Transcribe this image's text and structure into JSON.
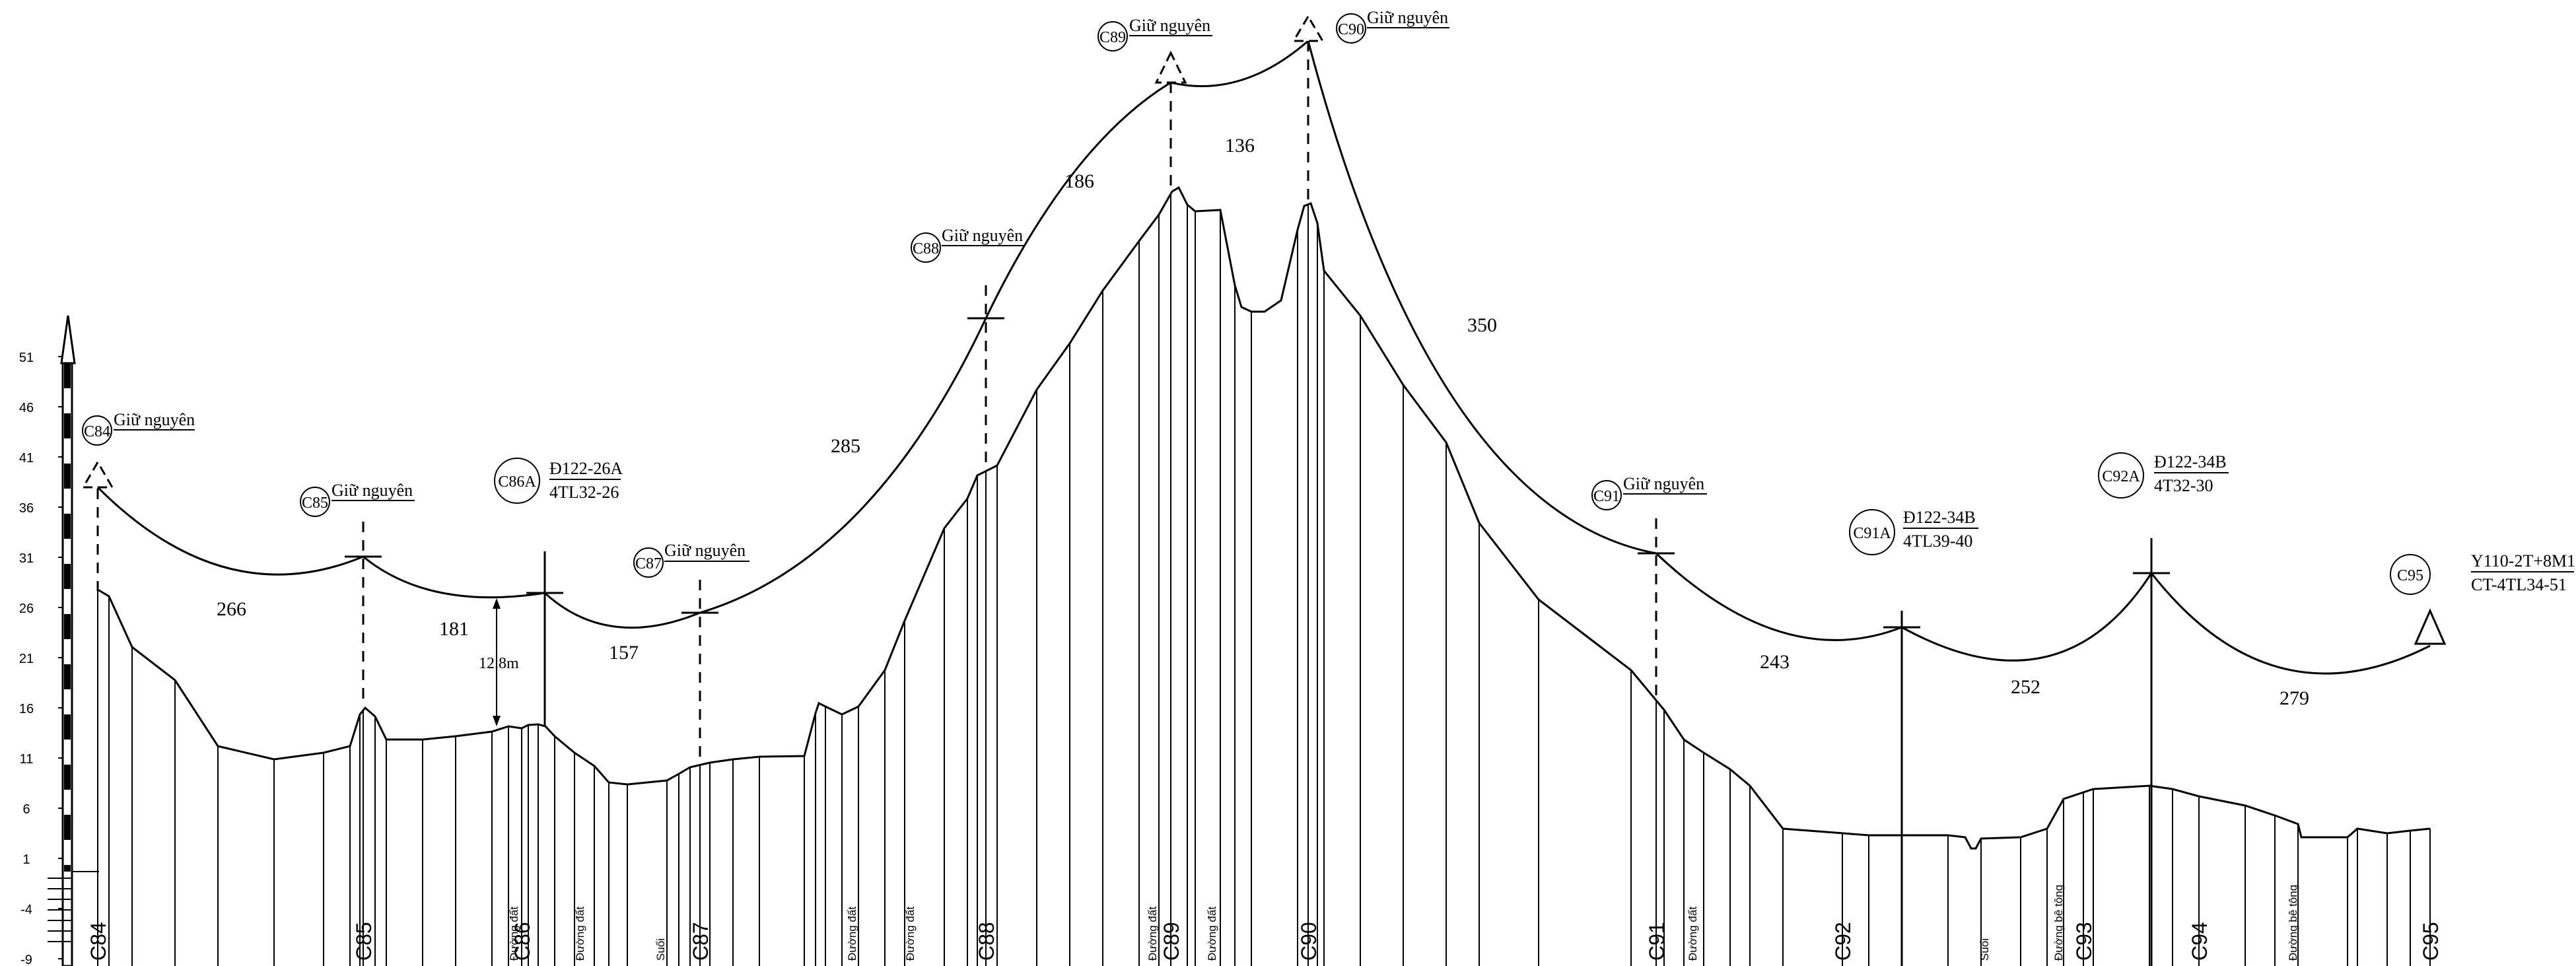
{
  "y_axis": {
    "ticks": [
      "51",
      "46",
      "41",
      "36",
      "31",
      "26",
      "21",
      "16",
      "11",
      "6",
      "1",
      "-4",
      "-9"
    ],
    "min": -9,
    "max": 51
  },
  "stations": [
    {
      "label": "C84",
      "x_value": 0
    },
    {
      "label": "C85",
      "x_value": 266
    },
    {
      "label": "C86",
      "x_value": 447
    },
    {
      "label": "C87",
      "x_value": 604
    },
    {
      "label": "C88",
      "x_value": 889
    },
    {
      "label": "C89",
      "x_value": 1075
    },
    {
      "label": "C90",
      "x_value": 1211
    },
    {
      "label": "C91",
      "x_value": 1561
    },
    {
      "label": "C92",
      "x_value": 1804
    },
    {
      "label": "C93",
      "x_value": 1925
    },
    {
      "label": "C94",
      "x_value": 2056
    },
    {
      "label": "C95",
      "x_value": 2335
    }
  ],
  "bottom_notes": [
    {
      "text": "Đường đất",
      "near": "C86",
      "offset": -12
    },
    {
      "text": "Đường đất",
      "near": "C86",
      "offset": 88
    },
    {
      "text": "Suối",
      "near": "C87",
      "offset": -60
    },
    {
      "text": "Đường đất",
      "near": "C87",
      "offset": 230
    },
    {
      "text": "Đường đất",
      "near": "C88",
      "offset": -115
    },
    {
      "text": "Đường đất",
      "near": "C89",
      "offset": -28
    },
    {
      "text": "Đường đất",
      "near": "C89",
      "offset": 62
    },
    {
      "text": "Đường đất",
      "near": "C91",
      "offset": 55
    },
    {
      "text": "Suối",
      "near": "C92",
      "offset": 215
    },
    {
      "text": "Đường bê tông",
      "near": "C93",
      "offset": -38
    },
    {
      "text": "Đường bê tông",
      "near": "C94",
      "offset": 142
    }
  ],
  "poles": [
    {
      "id": "C84",
      "line1": "Giữ nguyên",
      "line2": ""
    },
    {
      "id": "C85",
      "line1": "Giữ nguyên",
      "line2": ""
    },
    {
      "id": "C86A",
      "line1": "Đ122-26A",
      "line2": "4TL32-26"
    },
    {
      "id": "C87",
      "line1": "Giữ nguyên",
      "line2": ""
    },
    {
      "id": "C88",
      "line1": "Giữ nguyên",
      "line2": ""
    },
    {
      "id": "C89",
      "line1": "Giữ nguyên",
      "line2": ""
    },
    {
      "id": "C90",
      "line1": "Giữ nguyên",
      "line2": ""
    },
    {
      "id": "C91",
      "line1": "Giữ nguyên",
      "line2": ""
    },
    {
      "id": "C91A",
      "line1": "Đ122-34B",
      "line2": "4TL39-40"
    },
    {
      "id": "C92A",
      "line1": "Đ122-34B",
      "line2": "4T32-30"
    },
    {
      "id": "C95",
      "line1": "Y110-2T+8M1",
      "line2": "CT-4TL34-51"
    }
  ],
  "spans": [
    "266",
    "181",
    "157",
    "285",
    "186",
    "136",
    "350",
    "243",
    "252",
    "279"
  ],
  "clearance_label": "12.8m",
  "colors": {
    "line": "#000000",
    "background": "#ffffff"
  }
}
